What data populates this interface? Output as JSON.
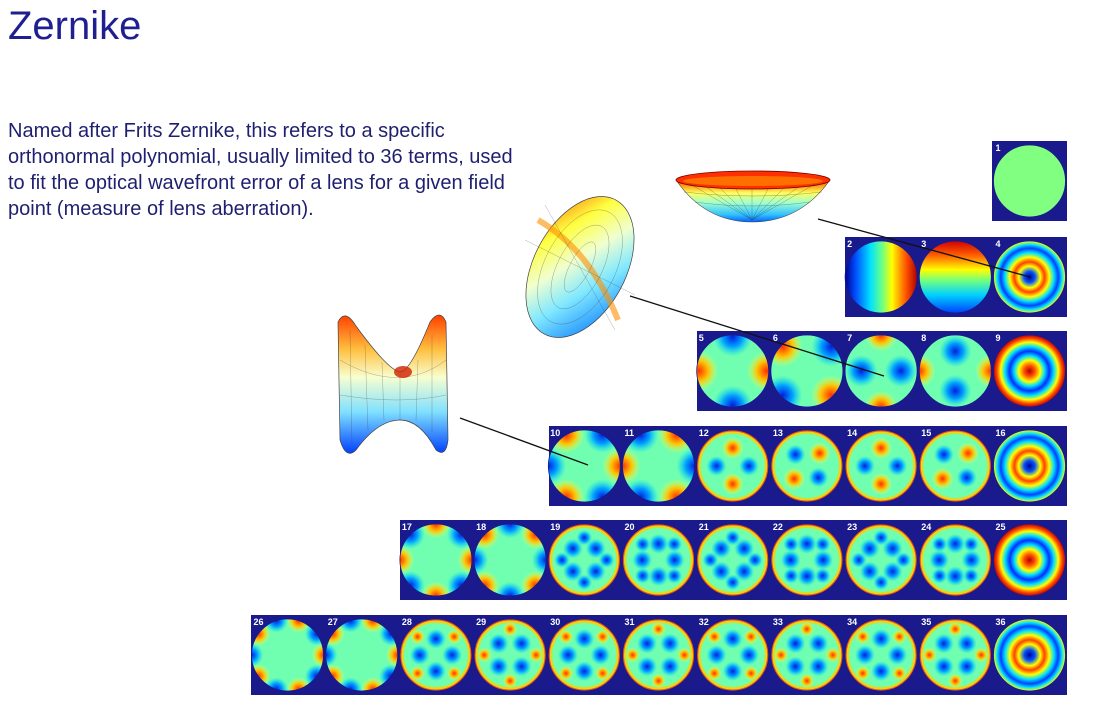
{
  "title": "Zernike",
  "description": "Named after Frits Zernike, this refers to a specific orthonormal polynomial, usually limited to 36 terms, used to fit the optical wavefront error of a lens for a given field point (measure of lens aberration).",
  "colors": {
    "title": "#1f1f8f",
    "text": "#1f1f6f",
    "background_panel": "#1a1a8c"
  },
  "rows": [
    {
      "terms": [
        "1"
      ]
    },
    {
      "terms": [
        "2",
        "3",
        "4"
      ]
    },
    {
      "terms": [
        "5",
        "6",
        "7",
        "8",
        "9"
      ]
    },
    {
      "terms": [
        "10",
        "11",
        "12",
        "13",
        "14",
        "15",
        "16"
      ]
    },
    {
      "terms": [
        "17",
        "18",
        "19",
        "20",
        "21",
        "22",
        "23",
        "24",
        "25"
      ]
    },
    {
      "terms": [
        "26",
        "27",
        "28",
        "29",
        "30",
        "31",
        "32",
        "33",
        "34",
        "35",
        "36"
      ]
    }
  ]
}
